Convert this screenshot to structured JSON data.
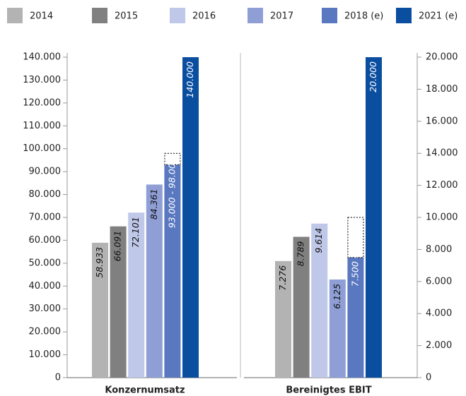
{
  "chart_data": {
    "type": "bar",
    "categories": [
      "Konzernumsatz",
      "Bereinigtes EBIT"
    ],
    "axes": [
      "y",
      "y2"
    ],
    "series": [
      {
        "name": "2014",
        "color": "#b3b3b3",
        "values": [
          58933,
          7276
        ],
        "value_labels": [
          "58.933",
          "7.276"
        ]
      },
      {
        "name": "2015",
        "color": "#808080",
        "values": [
          66091,
          8789
        ],
        "value_labels": [
          "66.091",
          "8.789"
        ]
      },
      {
        "name": "2016",
        "color": "#bfc8e8",
        "values": [
          72101,
          9614
        ],
        "value_labels": [
          "72.101",
          "9.614"
        ]
      },
      {
        "name": "2017",
        "color": "#8f9fd6",
        "values": [
          84361,
          6125
        ],
        "value_labels": [
          "84.361",
          "6.125"
        ]
      },
      {
        "name": "2018 (e)",
        "color": "#5a78c0",
        "values": [
          93000,
          7500
        ],
        "upper": [
          98000,
          10000
        ],
        "value_labels": [
          "93.000 - 98.000",
          "7.500 - 10.000"
        ]
      },
      {
        "name": "2021 (e)",
        "color": "#0a4ea0",
        "values": [
          140000,
          20000
        ],
        "value_labels": [
          "140.000",
          "20.000"
        ]
      }
    ],
    "ylim": [
      0,
      140000
    ],
    "yticks": [
      0,
      {
        "value": 10000,
        "label": "10.000"
      },
      {
        "value": 20000,
        "label": "20.000"
      },
      {
        "value": 30000,
        "label": "30.000"
      },
      {
        "value": 40000,
        "label": "40.000"
      },
      {
        "value": 50000,
        "label": "50.000"
      },
      {
        "value": 60000,
        "label": "60.000"
      },
      {
        "value": 70000,
        "label": "70.000"
      },
      {
        "value": 80000,
        "label": "80.000"
      },
      {
        "value": 90000,
        "label": "90.000"
      },
      {
        "value": 100000,
        "label": "100.000"
      },
      {
        "value": 110000,
        "label": "110.000"
      },
      {
        "value": 120000,
        "label": "120.000"
      },
      {
        "value": 130000,
        "label": "130.000"
      },
      {
        "value": 140000,
        "label": "140.000"
      }
    ],
    "y2lim": [
      0,
      20000
    ],
    "y2ticks": [
      0,
      {
        "value": 2000,
        "label": "2.000"
      },
      {
        "value": 4000,
        "label": "4.000"
      },
      {
        "value": 6000,
        "label": "6.000"
      },
      {
        "value": 8000,
        "label": "8.000"
      },
      {
        "value": 10000,
        "label": "10.000"
      },
      {
        "value": 12000,
        "label": "12.000"
      },
      {
        "value": 14000,
        "label": "14.000"
      },
      {
        "value": 16000,
        "label": "16.000"
      },
      {
        "value": 18000,
        "label": "18.000"
      },
      {
        "value": 20000,
        "label": "20.000"
      }
    ],
    "legend": "top"
  }
}
